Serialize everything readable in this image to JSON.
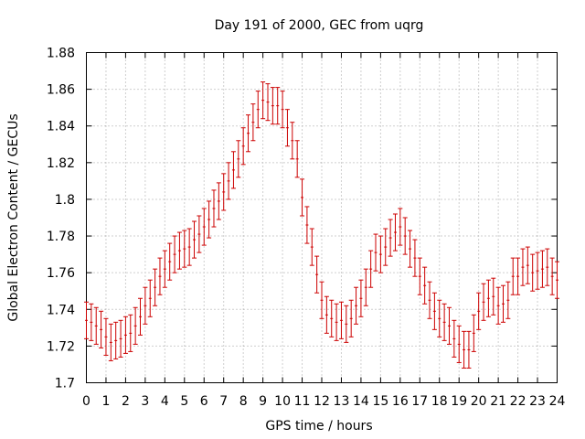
{
  "chart_data": {
    "type": "scatter",
    "title": "Day 191 of 2000, GEC from uqrg",
    "xlabel": "GPS time / hours",
    "ylabel": "Global Electron Content / GECUs",
    "xlim": [
      0,
      24
    ],
    "ylim": [
      1.7,
      1.88
    ],
    "x_ticks": [
      "0",
      "1",
      "2",
      "3",
      "4",
      "5",
      "6",
      "7",
      "8",
      "9",
      "10",
      "11",
      "12",
      "13",
      "14",
      "15",
      "16",
      "17",
      "18",
      "19",
      "20",
      "21",
      "22",
      "23",
      "24"
    ],
    "y_ticks": [
      "1.7",
      "1.72",
      "1.74",
      "1.76",
      "1.78",
      "1.8",
      "1.82",
      "1.84",
      "1.86",
      "1.88"
    ],
    "grid": true,
    "legend": "none",
    "error_bar": 0.01,
    "color": "#cc0000",
    "series": [
      {
        "x": [
          0,
          0.25,
          0.5,
          0.75,
          1,
          1.25,
          1.5,
          1.75,
          2,
          2.25,
          2.5,
          2.75,
          3,
          3.25,
          3.5,
          3.75,
          4,
          4.25,
          4.5,
          4.75,
          5,
          5.25,
          5.5,
          5.75,
          6,
          6.25,
          6.5,
          6.75,
          7,
          7.25,
          7.5,
          7.75,
          8,
          8.25,
          8.5,
          8.75,
          9,
          9.25,
          9.5,
          9.75,
          10,
          10.25,
          10.5,
          10.75,
          11,
          11.25,
          11.5,
          11.75,
          12,
          12.25,
          12.5,
          12.75,
          13,
          13.25,
          13.5,
          13.75,
          14,
          14.25,
          14.5,
          14.75,
          15,
          15.25,
          15.5,
          15.75,
          16,
          16.25,
          16.5,
          16.75,
          17,
          17.25,
          17.5,
          17.75,
          18,
          18.25,
          18.5,
          18.75,
          19,
          19.25,
          19.5,
          19.75,
          20,
          20.25,
          20.5,
          20.75,
          21,
          21.25,
          21.5,
          21.75,
          22,
          22.25,
          22.5,
          22.75,
          23,
          23.25,
          23.5,
          23.75,
          24
        ],
        "y": [
          1.734,
          1.733,
          1.731,
          1.729,
          1.725,
          1.722,
          1.723,
          1.724,
          1.726,
          1.727,
          1.731,
          1.736,
          1.742,
          1.746,
          1.752,
          1.758,
          1.762,
          1.766,
          1.77,
          1.772,
          1.773,
          1.774,
          1.778,
          1.781,
          1.785,
          1.789,
          1.795,
          1.799,
          1.804,
          1.81,
          1.816,
          1.822,
          1.829,
          1.836,
          1.842,
          1.849,
          1.854,
          1.853,
          1.851,
          1.851,
          1.849,
          1.839,
          1.832,
          1.822,
          1.801,
          1.786,
          1.774,
          1.759,
          1.745,
          1.737,
          1.735,
          1.733,
          1.734,
          1.732,
          1.735,
          1.742,
          1.746,
          1.752,
          1.762,
          1.771,
          1.77,
          1.774,
          1.779,
          1.782,
          1.785,
          1.78,
          1.773,
          1.768,
          1.758,
          1.753,
          1.745,
          1.739,
          1.735,
          1.733,
          1.731,
          1.724,
          1.721,
          1.718,
          1.718,
          1.727,
          1.739,
          1.744,
          1.746,
          1.747,
          1.742,
          1.743,
          1.745,
          1.758,
          1.758,
          1.763,
          1.764,
          1.76,
          1.761,
          1.762,
          1.763,
          1.758,
          1.756
        ]
      }
    ]
  }
}
